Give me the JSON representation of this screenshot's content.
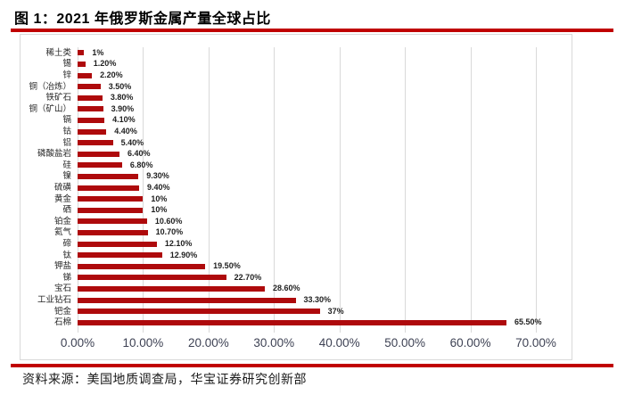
{
  "figure": {
    "title": "图 1：2021 年俄罗斯金属产量全球占比",
    "source": "资料来源：美国地质调查局，华宝证券研究创新部"
  },
  "colors": {
    "accent_rule": "#C00000",
    "bar": "#AE0A0C",
    "gridline": "#D9D9D9",
    "chart_border": "#D9D9D9",
    "axis_text": "#3E4254",
    "label_text": "#1F1F1F"
  },
  "chart_data": {
    "type": "bar",
    "orientation": "horizontal",
    "title": "2021 年俄罗斯金属产量全球占比",
    "categories": [
      "稀土类",
      "锡",
      "锌",
      "铜（冶炼）",
      "铁矿石",
      "铜（矿山）",
      "镉",
      "钴",
      "铝",
      "磷酸盐岩",
      "硅",
      "镍",
      "硫磺",
      "黄金",
      "硒",
      "铂金",
      "氦气",
      "碲",
      "钛",
      "钾盐",
      "锑",
      "宝石",
      "工业钻石",
      "钯金",
      "石棉"
    ],
    "values": [
      1,
      1.2,
      2.2,
      3.5,
      3.8,
      3.9,
      4.1,
      4.4,
      5.4,
      6.4,
      6.8,
      9.3,
      9.4,
      10,
      10,
      10.6,
      10.7,
      12.1,
      12.9,
      19.5,
      22.7,
      28.6,
      33.3,
      37,
      65.5
    ],
    "value_labels": [
      "1%",
      "1.20%",
      "2.20%",
      "3.50%",
      "3.80%",
      "3.90%",
      "4.10%",
      "4.40%",
      "5.40%",
      "6.40%",
      "6.80%",
      "9.30%",
      "9.40%",
      "10%",
      "10%",
      "10.60%",
      "10.70%",
      "12.10%",
      "12.90%",
      "19.50%",
      "22.70%",
      "28.60%",
      "33.30%",
      "37%",
      "65.50%"
    ],
    "xlabel": "",
    "ylabel": "",
    "xlim": [
      0,
      70
    ],
    "x_tick_values": [
      0,
      10,
      20,
      30,
      40,
      50,
      60,
      70
    ],
    "x_tick_labels": [
      "0.00%",
      "10.00%",
      "20.00%",
      "30.00%",
      "40.00%",
      "50.00%",
      "60.00%",
      "70.00%"
    ],
    "grid": "vertical",
    "legend": "none",
    "bar_color": "#AE0A0C"
  }
}
